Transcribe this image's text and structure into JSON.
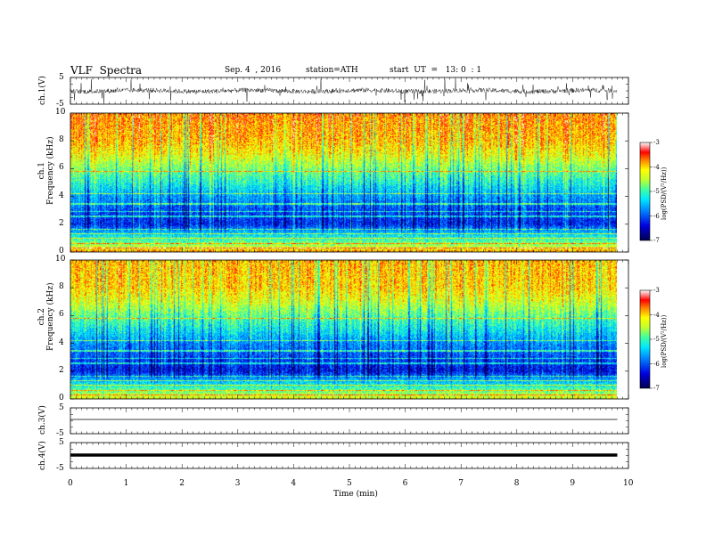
{
  "header": {
    "title": "VLF  Spectra",
    "date": "Sep. 4  , 2016",
    "station": "station=ATH",
    "start": "start  UT  =   13: 0  : 1"
  },
  "chart_data": [
    {
      "type": "line",
      "panel": "ch1-waveform",
      "ylabel": "ch.1(V)",
      "ylim": [
        -5,
        5
      ],
      "yticks": [
        "5",
        "-5"
      ],
      "description_series": "continuous noisy trace around 0 V with spikes up to ~5 V"
    },
    {
      "type": "heatmap",
      "panel": "ch1-spectrogram",
      "ylabel": "ch.1\nFrequency  (kHz)",
      "ylim": [
        0,
        10
      ],
      "yticks": [
        "0",
        "2",
        "4",
        "6",
        "8",
        "10"
      ],
      "colorbar": {
        "label": "log(PSD/(V²/Hz))",
        "range": [
          -7,
          -3
        ],
        "ticks": [
          "-3",
          "-4",
          "-5",
          "-6",
          "-7"
        ]
      },
      "colormap": [
        "#00004a",
        "#0000c8",
        "#0050ff",
        "#00c8ff",
        "#40ffa0",
        "#a0ff40",
        "#ffff00",
        "#ff8000",
        "#ff0000",
        "#ffb0b0",
        "#ffffff"
      ],
      "band_levels_by_khz": [
        [
          0,
          -3.8
        ],
        [
          0.5,
          -4.6
        ],
        [
          1,
          -5.1
        ],
        [
          2,
          -6.2
        ],
        [
          3,
          -6.0
        ],
        [
          4,
          -5.6
        ],
        [
          5,
          -5.1
        ],
        [
          6,
          -4.7
        ],
        [
          7,
          -4.2
        ],
        [
          8,
          -3.9
        ],
        [
          10,
          -3.7
        ]
      ]
    },
    {
      "type": "heatmap",
      "panel": "ch2-spectrogram",
      "ylabel": "ch.2\nFrequency  (kHz)",
      "ylim": [
        0,
        10
      ],
      "yticks": [
        "0",
        "2",
        "4",
        "6",
        "8",
        "10"
      ],
      "colorbar": {
        "label": "log(PSD/(V²/Hz))",
        "range": [
          -7,
          -3
        ],
        "ticks": [
          "-3",
          "-4",
          "-5",
          "-6",
          "-7"
        ]
      },
      "band_levels_by_khz": [
        [
          0,
          -4.2
        ],
        [
          0.5,
          -4.7
        ],
        [
          1,
          -5.2
        ],
        [
          2,
          -6.3
        ],
        [
          3,
          -6.0
        ],
        [
          4,
          -5.7
        ],
        [
          5,
          -5.2
        ],
        [
          6,
          -4.8
        ],
        [
          7,
          -4.3
        ],
        [
          8,
          -4.0
        ],
        [
          10,
          -3.9
        ]
      ]
    },
    {
      "type": "line",
      "panel": "ch3-waveform",
      "ylabel": "ch.3(V)",
      "ylim": [
        -5,
        5
      ],
      "yticks": [
        "5",
        "-5"
      ],
      "series_level": 0
    },
    {
      "type": "line",
      "panel": "ch4-waveform",
      "ylabel": "ch.4(V)",
      "ylim": [
        -5,
        5
      ],
      "yticks": [
        "5",
        "-5"
      ],
      "series_level": 0
    }
  ],
  "xaxis": {
    "label": "Time  (min)",
    "xlim": [
      0,
      10
    ],
    "ticks": [
      "0",
      "1",
      "2",
      "3",
      "4",
      "5",
      "6",
      "7",
      "8",
      "9",
      "10"
    ],
    "data_end": 9.8
  }
}
